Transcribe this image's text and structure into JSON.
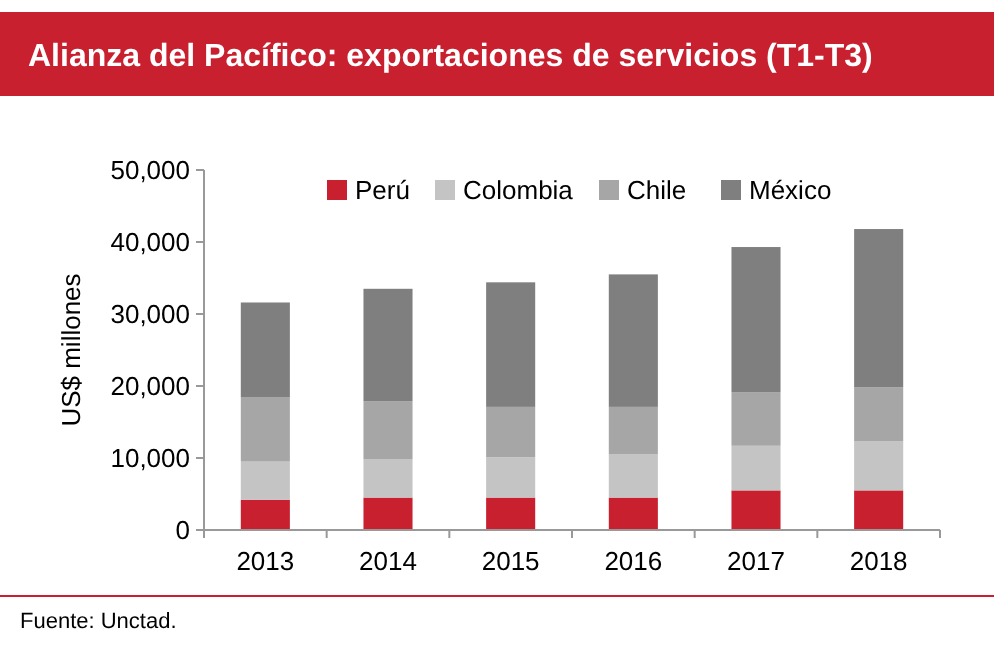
{
  "chart_data": {
    "type": "bar",
    "title": "Alianza del Pacífico: exportaciones de servicios (T1-T3)",
    "ylabel": "US$ millones",
    "categories": [
      "2013",
      "2014",
      "2015",
      "2016",
      "2017",
      "2018"
    ],
    "stacked": true,
    "series": [
      {
        "name": "Perú",
        "color": "#c8202f",
        "values": [
          4200,
          4500,
          4500,
          4500,
          5500,
          5500
        ]
      },
      {
        "name": "Colombia",
        "color": "#c4c4c4",
        "values": [
          5300,
          5300,
          5600,
          6000,
          6200,
          6800
        ]
      },
      {
        "name": "Chile",
        "color": "#a6a6a6",
        "values": [
          8900,
          8100,
          7000,
          6600,
          7400,
          7500
        ]
      },
      {
        "name": "México",
        "color": "#7f7f7f",
        "values": [
          13200,
          15600,
          17300,
          18400,
          20200,
          22000
        ]
      }
    ],
    "ylim": [
      0,
      50000
    ],
    "yticks": [
      {
        "value": 0,
        "label": "0"
      },
      {
        "value": 10000,
        "label": "10,000"
      },
      {
        "value": 20000,
        "label": "20,000"
      },
      {
        "value": 30000,
        "label": "30,000"
      },
      {
        "value": 40000,
        "label": "40,000"
      },
      {
        "value": 50000,
        "label": "50,000"
      }
    ],
    "legend": "top",
    "grid": false,
    "annotations": [
      "Fuente: Unctad."
    ]
  }
}
